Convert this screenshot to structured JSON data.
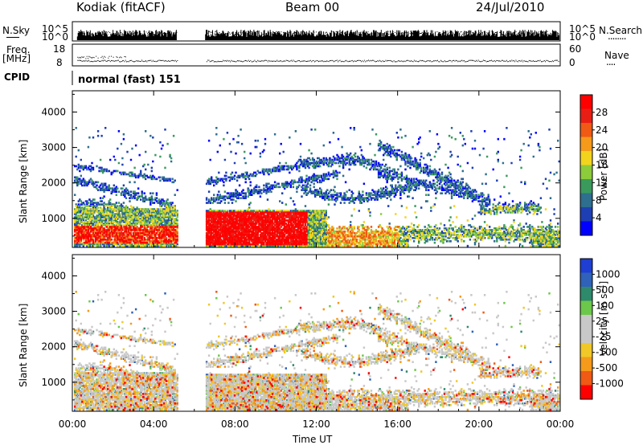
{
  "header": {
    "station": "Kodiak (fitACF)",
    "beam": "Beam 00",
    "date": "24/Jul/2010"
  },
  "top_panels": {
    "nsky_label": "N.Sky",
    "nsearch_label": "N.Search",
    "nsearch_legend": "........",
    "left_scale_top": "10^5",
    "left_scale_bottom": "10^0",
    "right_scale_top": "10^5",
    "right_scale_bottom": "10^0",
    "freq_label_1": "Freq.",
    "freq_label_2": "[MHz]",
    "freq_top": "18",
    "freq_bottom": "8",
    "nave_label": "Nave",
    "nave_legend": "....",
    "nave_top": "60",
    "nave_bottom": "0",
    "cpid_label": "CPID",
    "cpid_value": "normal (fast) 151"
  },
  "chart_data": [
    {
      "type": "heatmap",
      "name": "power",
      "ylabel": "Slant Range [km]",
      "y_ticks": [
        "4000",
        "3000",
        "2000",
        "1000"
      ],
      "y_tick_values": [
        4000,
        3000,
        2000,
        1000
      ],
      "ylim": [
        180,
        4600
      ],
      "xlim": [
        0,
        24
      ],
      "colorbar": {
        "label": "Power [dB]",
        "ticks": [
          "28",
          "24",
          "20",
          "16",
          "12",
          "8",
          "4"
        ],
        "colors": [
          "#0000ff",
          "#1e3fb4",
          "#2e6e8e",
          "#3a9a5c",
          "#8ccb3a",
          "#f2d41e",
          "#f59a1a",
          "#f05a14",
          "#e81e14",
          "#ff0000"
        ]
      },
      "data_gap_hours": [
        5.15,
        6.55
      ]
    },
    {
      "type": "heatmap",
      "name": "velocity",
      "ylabel": "Slant Range [km]",
      "y_ticks": [
        "4000",
        "3000",
        "2000",
        "1000"
      ],
      "y_tick_values": [
        4000,
        3000,
        2000,
        1000
      ],
      "ylim": [
        180,
        4600
      ],
      "xlim": [
        0,
        24
      ],
      "colorbar": {
        "label": "Velocity [m s⁻¹]",
        "ticks": [
          "1000",
          "500",
          "100",
          "25",
          "-25",
          "-100",
          "-500",
          "-1000"
        ],
        "colors": [
          "#1e3fd2",
          "#2f62b8",
          "#2e8a6a",
          "#6cc84a",
          "#c8c8c8",
          "#c8c8c8",
          "#f0c828",
          "#f59a1a",
          "#f05a14",
          "#ff0000"
        ]
      },
      "data_gap_hours": [
        5.15,
        6.55
      ]
    }
  ],
  "x_axis": {
    "tick_labels": [
      "00:00",
      "04:00",
      "08:00",
      "12:00",
      "16:00",
      "20:00",
      "00:00"
    ],
    "tick_hours": [
      0,
      4,
      8,
      12,
      16,
      20,
      24
    ],
    "title": "Time UT"
  }
}
